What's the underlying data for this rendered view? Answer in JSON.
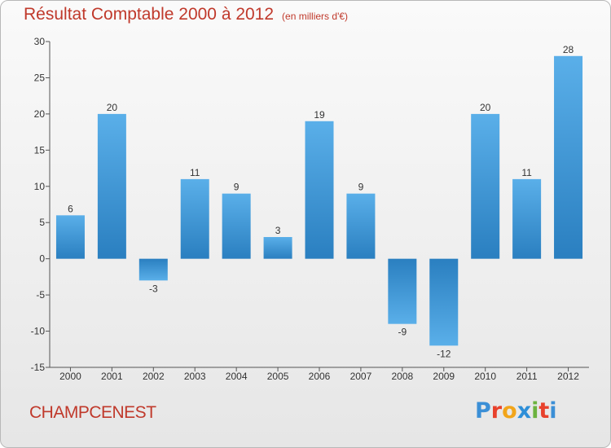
{
  "chart_data": {
    "type": "bar",
    "title": "Résultat Comptable 2000 à 2012",
    "subtitle": "(en milliers d'€)",
    "categories": [
      "2000",
      "2001",
      "2002",
      "2003",
      "2004",
      "2005",
      "2006",
      "2007",
      "2008",
      "2009",
      "2010",
      "2011",
      "2012"
    ],
    "values": [
      6,
      20,
      -3,
      11,
      9,
      3,
      19,
      9,
      -9,
      -12,
      20,
      11,
      28
    ],
    "ylim": [
      -15,
      30
    ],
    "yticks": [
      30,
      25,
      20,
      15,
      10,
      5,
      0,
      -5,
      -10,
      -15
    ],
    "xlabel": "",
    "ylabel": "",
    "grid": false,
    "legend": "none",
    "colors": {
      "bar_light": "#5aafe9",
      "bar_dark": "#2a7fc0",
      "title": "#c0392b"
    }
  },
  "footer": {
    "place": "CHAMPCENEST",
    "brand": "Proxiti",
    "brand_colors": [
      "#3b8fd6",
      "#e8412c",
      "#f2a51a",
      "#2e8fd8",
      "#6cb33f",
      "#e8412c",
      "#3b8fd6"
    ]
  }
}
